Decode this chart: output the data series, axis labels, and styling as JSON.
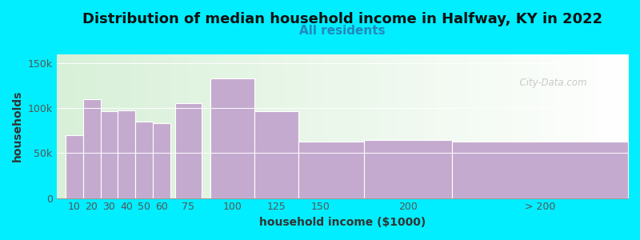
{
  "title": "Distribution of median household income in Halfway, KY in 2022",
  "subtitle": "All residents",
  "xlabel": "household income ($1000)",
  "ylabel": "households",
  "bar_color": "#C4AACF",
  "background_color": "#00EEFF",
  "values": [
    70000,
    110000,
    97000,
    98000,
    85000,
    83000,
    106000,
    133000,
    97000,
    63000,
    65000,
    63000
  ],
  "bar_left_edges": [
    5,
    15,
    25,
    35,
    45,
    55,
    67.5,
    87.5,
    112.5,
    137.5,
    175,
    225
  ],
  "bar_widths": [
    10,
    10,
    10,
    10,
    10,
    10,
    15,
    25,
    25,
    50,
    50,
    100
  ],
  "ylim": [
    0,
    160000
  ],
  "yticks": [
    0,
    50000,
    100000,
    150000
  ],
  "ytick_labels": [
    "0",
    "50k",
    "100k",
    "150k"
  ],
  "xtick_positions": [
    10,
    20,
    30,
    40,
    50,
    60,
    75,
    100,
    125,
    150,
    200,
    275
  ],
  "xtick_labels": [
    "10",
    "20",
    "30",
    "40",
    "50",
    "60",
    "75",
    "100",
    "125",
    "150",
    "200",
    "> 200"
  ],
  "xlim_left": 0,
  "xlim_right": 325,
  "title_fontsize": 13,
  "subtitle_fontsize": 11,
  "label_fontsize": 10,
  "watermark": "  City-Data.com"
}
